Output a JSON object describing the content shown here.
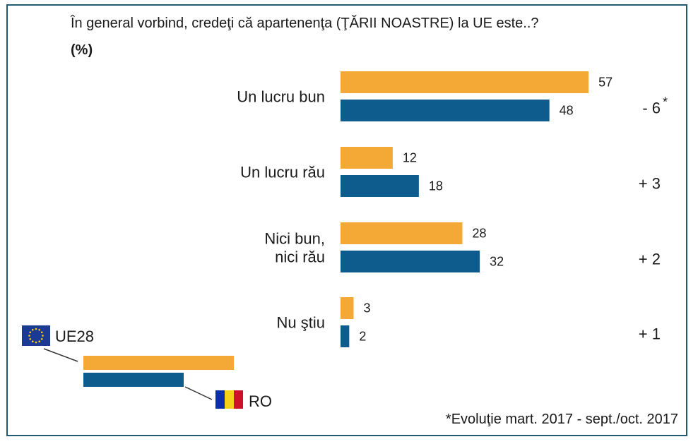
{
  "chart_data": {
    "type": "bar",
    "orientation": "horizontal",
    "title": "În general vorbind, credeţi că apartenenţa (ŢĂRII NOASTRE) la UE este..?",
    "unit": "(%)",
    "categories": [
      "Un lucru bun",
      "Un lucru rău",
      "Nici bun,\nnici rău",
      "Nu ştiu"
    ],
    "series": [
      {
        "name": "UE28",
        "color": "#f4a937",
        "values": [
          57,
          12,
          28,
          3
        ]
      },
      {
        "name": "RO",
        "color": "#0e5c8e",
        "values": [
          48,
          18,
          32,
          2
        ]
      }
    ],
    "changes": [
      "- 6",
      "+ 3",
      "+ 2",
      "+ 1"
    ],
    "change_asterisk": "*",
    "footnote": "*Evoluţie mart. 2017 - sept./oct. 2017",
    "legend_placement": "bottom-left",
    "grid": false
  }
}
